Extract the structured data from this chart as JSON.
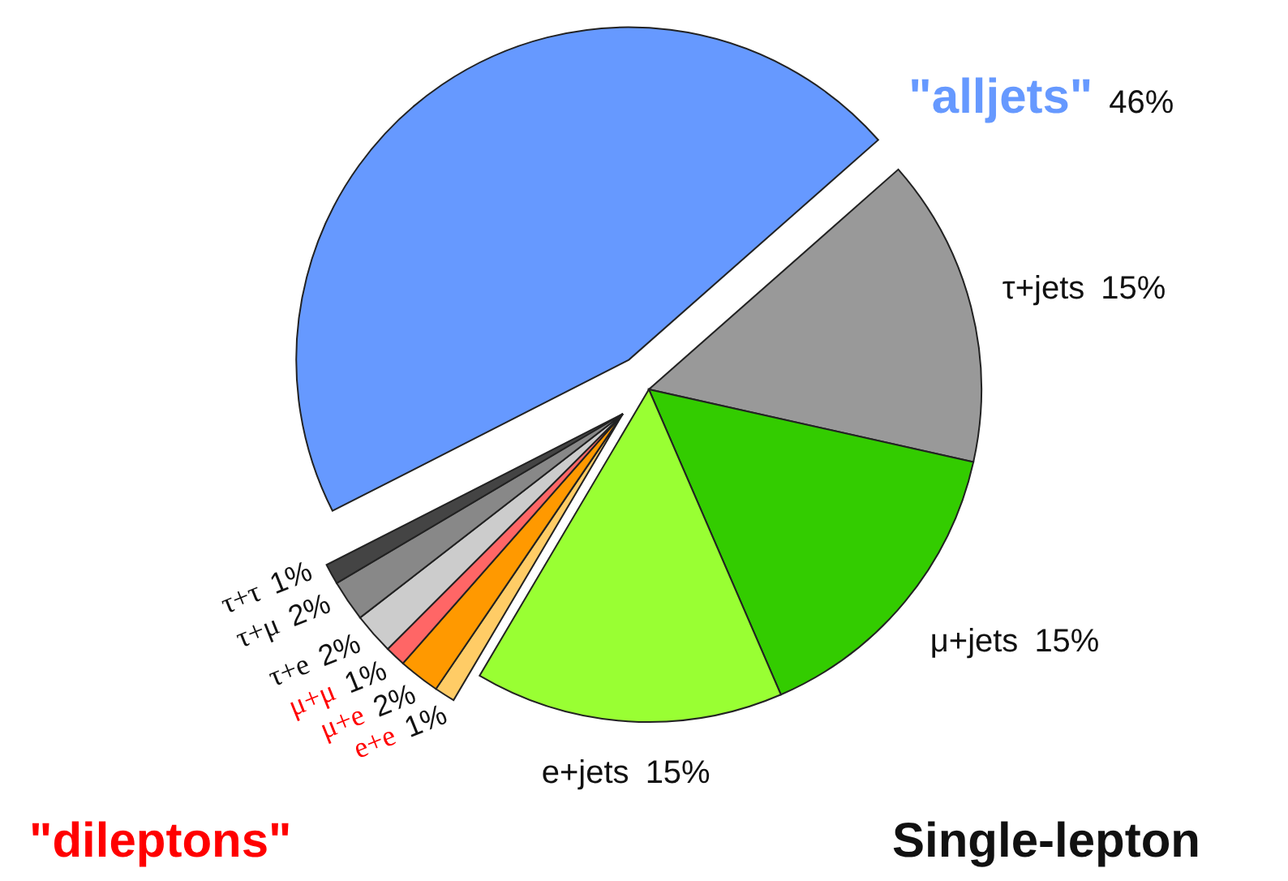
{
  "chart_data": {
    "type": "pie",
    "categories": [
      "\"alljets\"",
      "τ+jets",
      "μ+jets",
      "e+jets",
      "e+e",
      "μ+e",
      "μ+μ",
      "τ+e",
      "τ+μ",
      "τ+τ"
    ],
    "values": [
      46,
      15,
      15,
      15,
      1,
      2,
      1,
      2,
      2,
      1
    ],
    "value_labels": [
      "46%",
      "15%",
      "15%",
      "15%",
      "1%",
      "2%",
      "1%",
      "2%",
      "2%",
      "1%"
    ],
    "colors": [
      "#6699ff",
      "#999999",
      "#33cc00",
      "#99ff33",
      "#ffcc66",
      "#ff9900",
      "#ff6666",
      "#cccccc",
      "#888888",
      "#444444"
    ],
    "annotations": [
      "\"dileptons\"",
      "Single-lepton"
    ]
  }
}
